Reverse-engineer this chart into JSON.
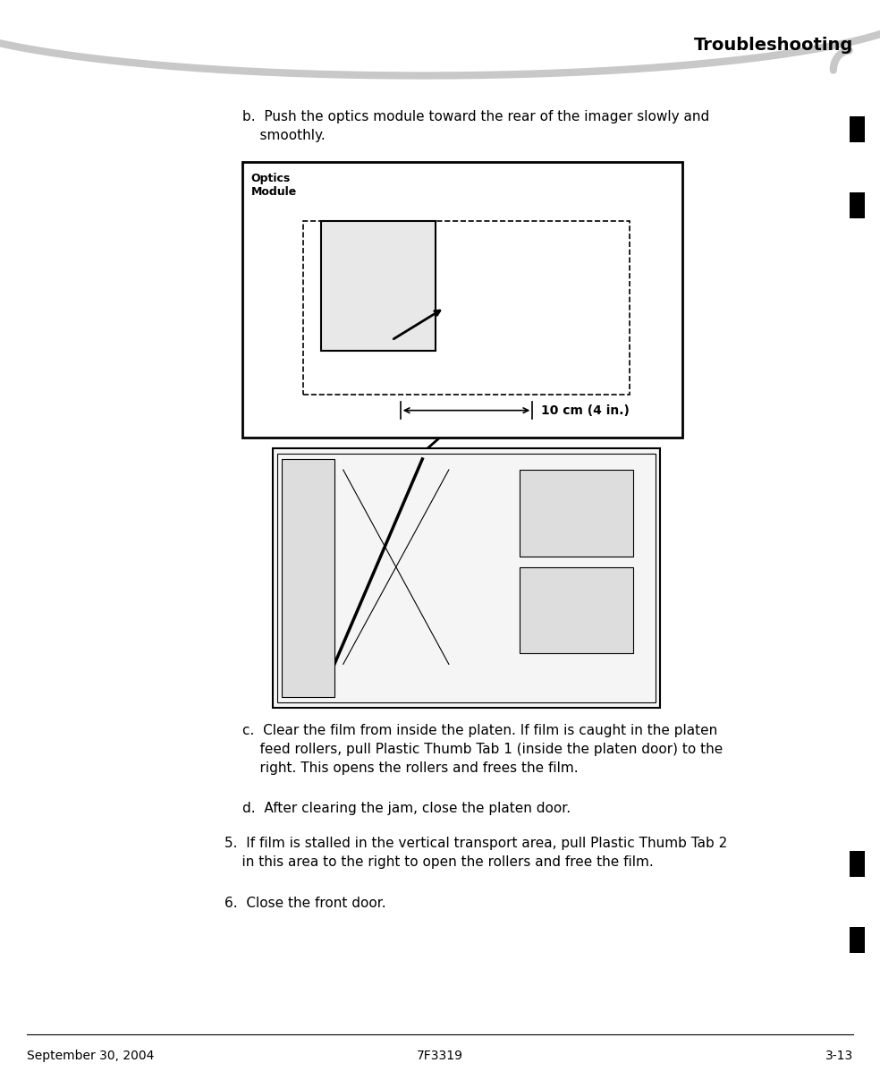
{
  "title": "Troubleshooting",
  "footer_left": "September 30, 2004",
  "footer_center": "7F3319",
  "footer_right": "3-13",
  "bg_color": "#ffffff",
  "text_color": "#000000",
  "header_curve_color": "#c8c8c8",
  "sidebar_bar_color": "#000000",
  "optics_label": "Optics\nModule",
  "measurement_label": "10 cm (4 in.)"
}
